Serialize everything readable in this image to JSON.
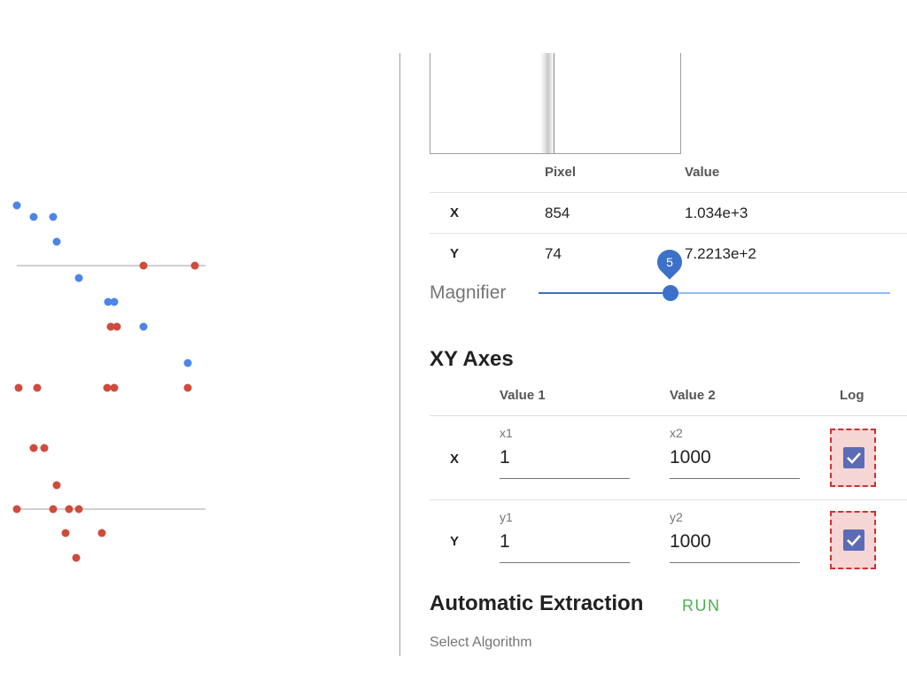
{
  "magnifier_table": {
    "headers": [
      "Pixel",
      "Value"
    ],
    "rows": [
      {
        "axis": "X",
        "pixel": "854",
        "value": "1.034e+3"
      },
      {
        "axis": "Y",
        "pixel": "74",
        "value": "7.2213e+2"
      }
    ]
  },
  "magnifier": {
    "label": "Magnifier",
    "level": "5",
    "level_fraction": 0.37
  },
  "xy_axes": {
    "title": "XY Axes",
    "headers": [
      "Value 1",
      "Value 2",
      "Log"
    ],
    "x": {
      "label": "X",
      "v1_label": "x1",
      "v1": "1",
      "v2_label": "x2",
      "v2": "1000",
      "log": true
    },
    "y": {
      "label": "Y",
      "v1_label": "y1",
      "v1": "1",
      "v2_label": "y2",
      "v2": "1000",
      "log": true
    }
  },
  "automatic_extraction": {
    "title": "Automatic Extraction",
    "run_label": "RUN",
    "select_algorithm_label": "Select Algorithm"
  },
  "colors": {
    "blue_points": "#4b86e8",
    "red_points": "#cf4b3c",
    "accent": "#3c71c9",
    "run": "#4caf50",
    "checkbox": "#5c6bb5"
  },
  "icons": [
    "check-icon"
  ]
}
